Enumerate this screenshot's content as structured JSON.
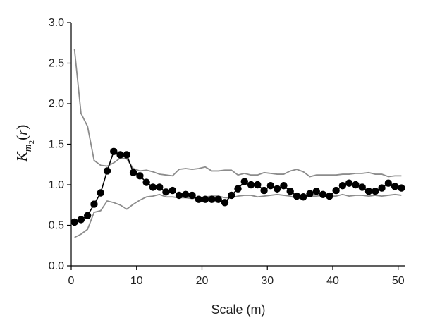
{
  "chart_data": {
    "type": "line",
    "title": "",
    "xlabel": "Scale (m)",
    "ylabel": "K_{m2}(r)",
    "xlim": [
      0,
      51
    ],
    "ylim": [
      0.0,
      3.0
    ],
    "x_ticks": [
      "0",
      "10",
      "20",
      "30",
      "40",
      "50"
    ],
    "y_ticks": [
      "0.0",
      "0.5",
      "1.0",
      "1.5",
      "2.0",
      "2.5",
      "3.0"
    ],
    "grid": false,
    "legend": "none",
    "colors": {
      "observed": "#000000",
      "envelope": "#8c8c8c"
    },
    "x": [
      0.5,
      1.5,
      2.5,
      3.5,
      4.5,
      5.5,
      6.5,
      7.5,
      8.5,
      9.5,
      10.5,
      11.5,
      12.5,
      13.5,
      14.5,
      15.5,
      16.5,
      17.5,
      18.5,
      19.5,
      20.5,
      21.5,
      22.5,
      23.5,
      24.5,
      25.5,
      26.5,
      27.5,
      28.5,
      29.5,
      30.5,
      31.5,
      32.5,
      33.5,
      34.5,
      35.5,
      36.5,
      37.5,
      38.5,
      39.5,
      40.5,
      41.5,
      42.5,
      43.5,
      44.5,
      45.5,
      46.5,
      47.5,
      48.5,
      49.5,
      50.5
    ],
    "series": [
      {
        "role": "observed",
        "values": [
          0.54,
          0.57,
          0.62,
          0.76,
          0.9,
          1.17,
          1.41,
          1.37,
          1.37,
          1.15,
          1.11,
          1.03,
          0.97,
          0.97,
          0.91,
          0.93,
          0.87,
          0.88,
          0.87,
          0.82,
          0.82,
          0.82,
          0.82,
          0.78,
          0.87,
          0.95,
          1.04,
          1.0,
          1.0,
          0.93,
          0.99,
          0.95,
          0.99,
          0.92,
          0.86,
          0.85,
          0.89,
          0.92,
          0.88,
          0.86,
          0.93,
          0.99,
          1.02,
          1.0,
          0.97,
          0.92,
          0.92,
          0.96,
          1.02,
          0.98,
          0.96
        ]
      },
      {
        "role": "upper-envelope",
        "values": [
          2.67,
          1.88,
          1.72,
          1.3,
          1.24,
          1.23,
          1.27,
          1.33,
          1.32,
          1.2,
          1.17,
          1.18,
          1.16,
          1.13,
          1.12,
          1.11,
          1.19,
          1.2,
          1.19,
          1.2,
          1.22,
          1.17,
          1.17,
          1.18,
          1.18,
          1.12,
          1.14,
          1.12,
          1.12,
          1.15,
          1.14,
          1.13,
          1.13,
          1.17,
          1.19,
          1.16,
          1.1,
          1.12,
          1.12,
          1.12,
          1.12,
          1.13,
          1.13,
          1.14,
          1.14,
          1.15,
          1.13,
          1.13,
          1.1,
          1.11,
          1.11
        ]
      },
      {
        "role": "lower-envelope",
        "values": [
          0.35,
          0.39,
          0.45,
          0.66,
          0.68,
          0.8,
          0.78,
          0.75,
          0.7,
          0.76,
          0.81,
          0.85,
          0.86,
          0.88,
          0.85,
          0.85,
          0.84,
          0.84,
          0.83,
          0.84,
          0.85,
          0.86,
          0.86,
          0.84,
          0.84,
          0.86,
          0.87,
          0.87,
          0.85,
          0.86,
          0.87,
          0.88,
          0.87,
          0.86,
          0.83,
          0.86,
          0.86,
          0.86,
          0.87,
          0.86,
          0.86,
          0.88,
          0.86,
          0.87,
          0.87,
          0.86,
          0.87,
          0.86,
          0.87,
          0.88,
          0.87
        ]
      }
    ]
  }
}
